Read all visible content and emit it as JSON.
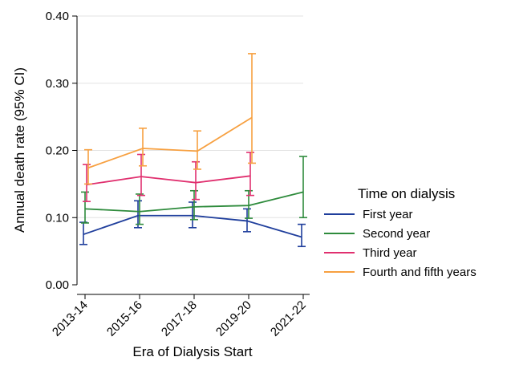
{
  "chart_data": {
    "type": "line",
    "xlabel": "Era of Dialysis Start",
    "ylabel": "Annual death rate (95% CI)",
    "categories": [
      "2013-14",
      "2015-16",
      "2017-18",
      "2019-20",
      "2021-22"
    ],
    "y_ticks": [
      "0.00",
      "0.10",
      "0.20",
      "0.30",
      "0.40"
    ],
    "ylim": [
      0,
      0.4
    ],
    "grid": "horizontal",
    "legend": {
      "title": "Time on dialysis",
      "placement": "right"
    },
    "series": [
      {
        "name": "First year",
        "color": "#1f3e9c",
        "values": [
          0.075,
          0.103,
          0.103,
          0.095,
          0.071
        ],
        "ci_low": [
          0.06,
          0.085,
          0.085,
          0.079,
          0.057
        ],
        "ci_high": [
          0.093,
          0.125,
          0.123,
          0.113,
          0.09
        ]
      },
      {
        "name": "Second year",
        "color": "#2e8b3c",
        "values": [
          0.113,
          0.109,
          0.116,
          0.118,
          0.138
        ],
        "ci_low": [
          0.092,
          0.09,
          0.097,
          0.099,
          0.1
        ],
        "ci_high": [
          0.138,
          0.135,
          0.14,
          0.14,
          0.191
        ]
      },
      {
        "name": "Third year",
        "color": "#e0306f",
        "values": [
          0.149,
          0.161,
          0.152,
          0.162,
          null
        ],
        "ci_low": [
          0.124,
          0.133,
          0.127,
          0.133,
          null
        ],
        "ci_high": [
          0.179,
          0.194,
          0.183,
          0.197,
          null
        ]
      },
      {
        "name": "Fourth and fifth years",
        "color": "#f7a040",
        "values": [
          0.174,
          0.203,
          0.199,
          0.249,
          null
        ],
        "ci_low": [
          0.15,
          0.177,
          0.172,
          0.181,
          null
        ],
        "ci_high": [
          0.201,
          0.233,
          0.229,
          0.344,
          null
        ]
      }
    ]
  }
}
